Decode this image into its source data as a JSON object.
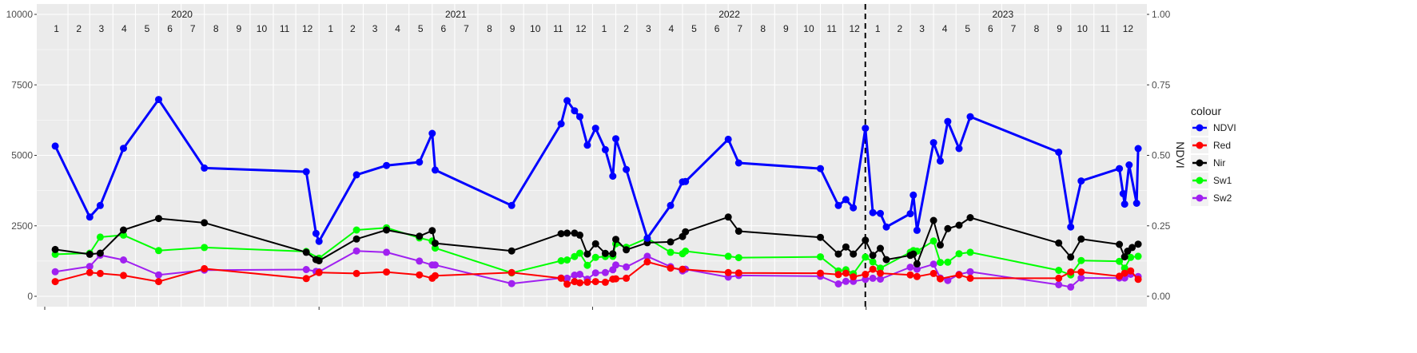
{
  "chart_data": {
    "type": "line",
    "title": "",
    "xlabel": "",
    "ylabel": "",
    "y2label": "NDVI",
    "ylim": [
      0,
      10000
    ],
    "y2lim": [
      0,
      1
    ],
    "yticks": [
      "0",
      "2500",
      "5000",
      "7500",
      "10000"
    ],
    "y2ticks": [
      "0.00",
      "0.25",
      "0.50",
      "0.75",
      "1.00"
    ],
    "xlim": [
      "2020-01-01",
      "2023-12-31"
    ],
    "years": [
      "2020",
      "2021",
      "2022",
      "2023"
    ],
    "months": [
      "1",
      "2",
      "3",
      "4",
      "5",
      "6",
      "7",
      "8",
      "9",
      "10",
      "11",
      "12"
    ],
    "vline": "2022-12-31",
    "grid": true,
    "legend": {
      "title": "colour",
      "position": "right"
    },
    "series": [
      {
        "name": "NDVI",
        "color": "#0000ff",
        "stroke_width": 3,
        "points": [
          [
            "2020-01-15",
            5330
          ],
          [
            "2020-03-01",
            2810
          ],
          [
            "2020-03-15",
            3220
          ],
          [
            "2020-04-15",
            5250
          ],
          [
            "2020-06-01",
            6980
          ],
          [
            "2020-08-01",
            4550
          ],
          [
            "2020-12-15",
            4420
          ],
          [
            "2020-12-28",
            2230
          ],
          [
            "2021-01-01",
            1950
          ],
          [
            "2021-02-20",
            4310
          ],
          [
            "2021-04-01",
            4640
          ],
          [
            "2021-05-15",
            4760
          ],
          [
            "2021-06-01",
            5780
          ],
          [
            "2021-06-05",
            4480
          ],
          [
            "2021-09-15",
            3220
          ],
          [
            "2021-11-20",
            6120
          ],
          [
            "2021-11-28",
            6940
          ],
          [
            "2021-12-08",
            6580
          ],
          [
            "2021-12-15",
            6370
          ],
          [
            "2021-12-25",
            5360
          ],
          [
            "2022-01-05",
            5960
          ],
          [
            "2022-01-18",
            5200
          ],
          [
            "2022-01-28",
            4260
          ],
          [
            "2022-02-01",
            5590
          ],
          [
            "2022-02-15",
            4500
          ],
          [
            "2022-03-15",
            2060
          ],
          [
            "2022-04-15",
            3220
          ],
          [
            "2022-05-01",
            4060
          ],
          [
            "2022-05-05",
            4070
          ],
          [
            "2022-07-01",
            5570
          ],
          [
            "2022-07-15",
            4730
          ],
          [
            "2022-11-01",
            4530
          ],
          [
            "2022-11-25",
            3220
          ],
          [
            "2022-12-05",
            3430
          ],
          [
            "2022-12-15",
            3140
          ],
          [
            "2022-12-31",
            5960
          ],
          [
            "2023-01-10",
            2970
          ],
          [
            "2023-01-20",
            2940
          ],
          [
            "2023-01-28",
            2460
          ],
          [
            "2023-03-01",
            2930
          ],
          [
            "2023-03-05",
            3590
          ],
          [
            "2023-03-10",
            2340
          ],
          [
            "2023-04-01",
            5450
          ],
          [
            "2023-04-10",
            4800
          ],
          [
            "2023-04-20",
            6200
          ],
          [
            "2023-05-05",
            5240
          ],
          [
            "2023-05-20",
            6370
          ],
          [
            "2023-09-15",
            5110
          ],
          [
            "2023-10-01",
            2460
          ],
          [
            "2023-10-15",
            4090
          ],
          [
            "2023-12-05",
            4530
          ],
          [
            "2023-12-10",
            3640
          ],
          [
            "2023-12-12",
            3270
          ],
          [
            "2023-12-18",
            4660
          ],
          [
            "2023-12-28",
            3300
          ],
          [
            "2023-12-30",
            5240
          ]
        ]
      },
      {
        "name": "Red",
        "color": "#ff0000",
        "stroke_width": 2,
        "points": [
          [
            "2020-01-15",
            520
          ],
          [
            "2020-03-01",
            840
          ],
          [
            "2020-03-15",
            810
          ],
          [
            "2020-04-15",
            740
          ],
          [
            "2020-06-01",
            520
          ],
          [
            "2020-08-01",
            980
          ],
          [
            "2020-12-15",
            630
          ],
          [
            "2021-01-01",
            840
          ],
          [
            "2021-02-20",
            810
          ],
          [
            "2021-04-01",
            860
          ],
          [
            "2021-05-15",
            760
          ],
          [
            "2021-06-01",
            640
          ],
          [
            "2021-06-05",
            730
          ],
          [
            "2021-09-15",
            840
          ],
          [
            "2021-11-20",
            640
          ],
          [
            "2021-11-28",
            430
          ],
          [
            "2021-12-08",
            520
          ],
          [
            "2021-12-15",
            480
          ],
          [
            "2021-12-25",
            500
          ],
          [
            "2022-01-05",
            520
          ],
          [
            "2022-01-18",
            500
          ],
          [
            "2022-01-28",
            610
          ],
          [
            "2022-02-01",
            620
          ],
          [
            "2022-02-15",
            640
          ],
          [
            "2022-03-15",
            1220
          ],
          [
            "2022-04-15",
            1000
          ],
          [
            "2022-05-01",
            960
          ],
          [
            "2022-07-01",
            840
          ],
          [
            "2022-07-15",
            830
          ],
          [
            "2022-11-01",
            820
          ],
          [
            "2022-11-25",
            770
          ],
          [
            "2022-12-05",
            820
          ],
          [
            "2022-12-15",
            690
          ],
          [
            "2022-12-31",
            780
          ],
          [
            "2023-01-10",
            960
          ],
          [
            "2023-01-20",
            820
          ],
          [
            "2023-03-01",
            760
          ],
          [
            "2023-03-10",
            700
          ],
          [
            "2023-04-01",
            810
          ],
          [
            "2023-04-10",
            620
          ],
          [
            "2023-05-05",
            760
          ],
          [
            "2023-05-20",
            640
          ],
          [
            "2023-09-15",
            640
          ],
          [
            "2023-10-01",
            860
          ],
          [
            "2023-10-15",
            860
          ],
          [
            "2023-12-05",
            710
          ],
          [
            "2023-12-12",
            820
          ],
          [
            "2023-12-20",
            900
          ],
          [
            "2023-12-30",
            600
          ]
        ]
      },
      {
        "name": "Nir",
        "color": "#000000",
        "stroke_width": 2,
        "points": [
          [
            "2020-01-15",
            1660
          ],
          [
            "2020-03-01",
            1490
          ],
          [
            "2020-03-15",
            1530
          ],
          [
            "2020-04-15",
            2350
          ],
          [
            "2020-06-01",
            2760
          ],
          [
            "2020-08-01",
            2610
          ],
          [
            "2020-12-15",
            1560
          ],
          [
            "2020-12-28",
            1300
          ],
          [
            "2021-01-01",
            1260
          ],
          [
            "2021-02-20",
            2030
          ],
          [
            "2021-04-01",
            2350
          ],
          [
            "2021-05-15",
            2130
          ],
          [
            "2021-06-01",
            2330
          ],
          [
            "2021-06-05",
            1880
          ],
          [
            "2021-09-15",
            1610
          ],
          [
            "2021-11-20",
            2220
          ],
          [
            "2021-11-28",
            2240
          ],
          [
            "2021-12-08",
            2240
          ],
          [
            "2021-12-15",
            2170
          ],
          [
            "2021-12-25",
            1500
          ],
          [
            "2022-01-05",
            1860
          ],
          [
            "2022-01-18",
            1520
          ],
          [
            "2022-01-28",
            1510
          ],
          [
            "2022-02-01",
            2020
          ],
          [
            "2022-02-15",
            1650
          ],
          [
            "2022-03-15",
            1900
          ],
          [
            "2022-04-15",
            1930
          ],
          [
            "2022-05-01",
            2120
          ],
          [
            "2022-05-05",
            2290
          ],
          [
            "2022-07-01",
            2810
          ],
          [
            "2022-07-15",
            2310
          ],
          [
            "2022-11-01",
            2090
          ],
          [
            "2022-11-25",
            1500
          ],
          [
            "2022-12-05",
            1750
          ],
          [
            "2022-12-15",
            1500
          ],
          [
            "2022-12-31",
            1990
          ],
          [
            "2023-01-10",
            1450
          ],
          [
            "2023-01-20",
            1700
          ],
          [
            "2023-01-28",
            1300
          ],
          [
            "2023-03-01",
            1450
          ],
          [
            "2023-03-05",
            1500
          ],
          [
            "2023-03-10",
            1150
          ],
          [
            "2023-04-01",
            2690
          ],
          [
            "2023-04-10",
            1820
          ],
          [
            "2023-04-20",
            2400
          ],
          [
            "2023-05-05",
            2520
          ],
          [
            "2023-05-20",
            2790
          ],
          [
            "2023-09-15",
            1890
          ],
          [
            "2023-10-01",
            1390
          ],
          [
            "2023-10-15",
            2030
          ],
          [
            "2023-12-05",
            1840
          ],
          [
            "2023-12-12",
            1400
          ],
          [
            "2023-12-16",
            1600
          ],
          [
            "2023-12-22",
            1730
          ],
          [
            "2023-12-30",
            1850
          ]
        ]
      },
      {
        "name": "Sw1",
        "color": "#00ff00",
        "stroke_width": 2,
        "points": [
          [
            "2020-01-15",
            1490
          ],
          [
            "2020-03-01",
            1530
          ],
          [
            "2020-03-15",
            2100
          ],
          [
            "2020-04-15",
            2170
          ],
          [
            "2020-06-01",
            1620
          ],
          [
            "2020-08-01",
            1730
          ],
          [
            "2020-12-15",
            1590
          ],
          [
            "2021-01-01",
            1350
          ],
          [
            "2021-02-20",
            2350
          ],
          [
            "2021-04-01",
            2430
          ],
          [
            "2021-05-15",
            2070
          ],
          [
            "2021-06-01",
            1960
          ],
          [
            "2021-06-05",
            1710
          ],
          [
            "2021-09-15",
            830
          ],
          [
            "2021-11-20",
            1260
          ],
          [
            "2021-11-28",
            1290
          ],
          [
            "2021-12-08",
            1410
          ],
          [
            "2021-12-15",
            1530
          ],
          [
            "2021-12-25",
            1100
          ],
          [
            "2022-01-05",
            1380
          ],
          [
            "2022-01-18",
            1410
          ],
          [
            "2022-01-28",
            1420
          ],
          [
            "2022-02-01",
            1860
          ],
          [
            "2022-02-15",
            1740
          ],
          [
            "2022-03-15",
            2060
          ],
          [
            "2022-04-15",
            1560
          ],
          [
            "2022-05-01",
            1510
          ],
          [
            "2022-05-05",
            1600
          ],
          [
            "2022-07-01",
            1420
          ],
          [
            "2022-07-15",
            1370
          ],
          [
            "2022-11-01",
            1400
          ],
          [
            "2022-11-25",
            900
          ],
          [
            "2022-12-05",
            940
          ],
          [
            "2022-12-15",
            800
          ],
          [
            "2022-12-31",
            1390
          ],
          [
            "2023-01-10",
            1220
          ],
          [
            "2023-01-20",
            1000
          ],
          [
            "2023-03-01",
            1560
          ],
          [
            "2023-03-05",
            1620
          ],
          [
            "2023-03-10",
            1600
          ],
          [
            "2023-04-01",
            1960
          ],
          [
            "2023-04-10",
            1200
          ],
          [
            "2023-04-20",
            1210
          ],
          [
            "2023-05-05",
            1510
          ],
          [
            "2023-05-20",
            1560
          ],
          [
            "2023-09-15",
            920
          ],
          [
            "2023-10-01",
            760
          ],
          [
            "2023-10-15",
            1270
          ],
          [
            "2023-12-05",
            1240
          ],
          [
            "2023-12-12",
            1000
          ],
          [
            "2023-12-20",
            1380
          ],
          [
            "2023-12-30",
            1420
          ]
        ]
      },
      {
        "name": "Sw2",
        "color": "#a020f0",
        "stroke_width": 2,
        "points": [
          [
            "2020-01-15",
            870
          ],
          [
            "2020-03-01",
            1060
          ],
          [
            "2020-03-15",
            1460
          ],
          [
            "2020-04-15",
            1290
          ],
          [
            "2020-06-01",
            760
          ],
          [
            "2020-08-01",
            930
          ],
          [
            "2020-12-15",
            950
          ],
          [
            "2020-12-28",
            880
          ],
          [
            "2021-01-01",
            870
          ],
          [
            "2021-02-20",
            1610
          ],
          [
            "2021-04-01",
            1560
          ],
          [
            "2021-05-15",
            1250
          ],
          [
            "2021-06-01",
            1110
          ],
          [
            "2021-06-05",
            1110
          ],
          [
            "2021-09-15",
            450
          ],
          [
            "2021-11-20",
            650
          ],
          [
            "2021-11-28",
            640
          ],
          [
            "2021-12-08",
            750
          ],
          [
            "2021-12-15",
            780
          ],
          [
            "2021-12-25",
            610
          ],
          [
            "2022-01-05",
            830
          ],
          [
            "2022-01-18",
            840
          ],
          [
            "2022-01-28",
            940
          ],
          [
            "2022-02-01",
            1110
          ],
          [
            "2022-02-15",
            1040
          ],
          [
            "2022-03-15",
            1420
          ],
          [
            "2022-04-15",
            1050
          ],
          [
            "2022-05-01",
            900
          ],
          [
            "2022-05-05",
            960
          ],
          [
            "2022-07-01",
            680
          ],
          [
            "2022-07-15",
            740
          ],
          [
            "2022-11-01",
            710
          ],
          [
            "2022-11-25",
            440
          ],
          [
            "2022-12-05",
            530
          ],
          [
            "2022-12-15",
            530
          ],
          [
            "2022-12-31",
            600
          ],
          [
            "2023-01-10",
            640
          ],
          [
            "2023-01-20",
            610
          ],
          [
            "2023-03-01",
            1030
          ],
          [
            "2023-03-10",
            960
          ],
          [
            "2023-04-01",
            1140
          ],
          [
            "2023-04-10",
            650
          ],
          [
            "2023-04-20",
            560
          ],
          [
            "2023-05-05",
            780
          ],
          [
            "2023-05-20",
            870
          ],
          [
            "2023-09-15",
            410
          ],
          [
            "2023-10-01",
            330
          ],
          [
            "2023-10-15",
            650
          ],
          [
            "2023-12-05",
            650
          ],
          [
            "2023-12-12",
            650
          ],
          [
            "2023-12-20",
            780
          ],
          [
            "2023-12-30",
            700
          ]
        ]
      }
    ]
  }
}
